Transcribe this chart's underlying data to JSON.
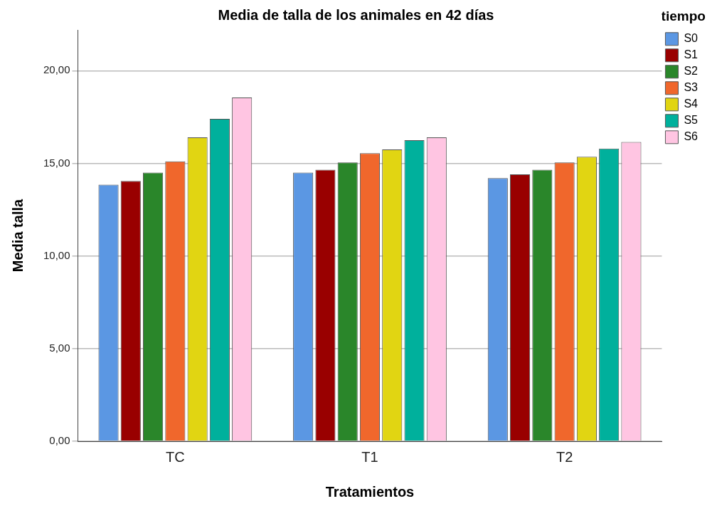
{
  "chart_data": {
    "type": "bar",
    "title": "Media de talla de los animales en 42 días",
    "xlabel": "Tratamientos",
    "ylabel": "Media talla",
    "legend_title": "tiempo",
    "categories": [
      "TC",
      "T1",
      "T2"
    ],
    "series": [
      {
        "name": "S0",
        "color": "#5b97e3",
        "values": [
          13.85,
          14.5,
          14.2
        ]
      },
      {
        "name": "S1",
        "color": "#990000",
        "values": [
          14.05,
          14.65,
          14.4
        ]
      },
      {
        "name": "S2",
        "color": "#2a862a",
        "values": [
          14.5,
          15.05,
          14.65
        ]
      },
      {
        "name": "S3",
        "color": "#f0672c",
        "values": [
          15.1,
          15.55,
          15.05
        ]
      },
      {
        "name": "S4",
        "color": "#e1d512",
        "values": [
          16.4,
          15.75,
          15.35
        ]
      },
      {
        "name": "S5",
        "color": "#00b09c",
        "values": [
          17.4,
          16.25,
          15.8
        ]
      },
      {
        "name": "S6",
        "color": "#ffc5e2",
        "values": [
          18.55,
          16.4,
          16.15
        ]
      }
    ],
    "ylim": [
      0,
      22.2
    ],
    "yticks": [
      {
        "value": 0,
        "label": "0,00"
      },
      {
        "value": 5,
        "label": "5,00"
      },
      {
        "value": 10,
        "label": "10,00"
      },
      {
        "value": 15,
        "label": "15,00"
      },
      {
        "value": 20,
        "label": "20,00"
      }
    ],
    "grid": "y",
    "legend": "top right"
  }
}
